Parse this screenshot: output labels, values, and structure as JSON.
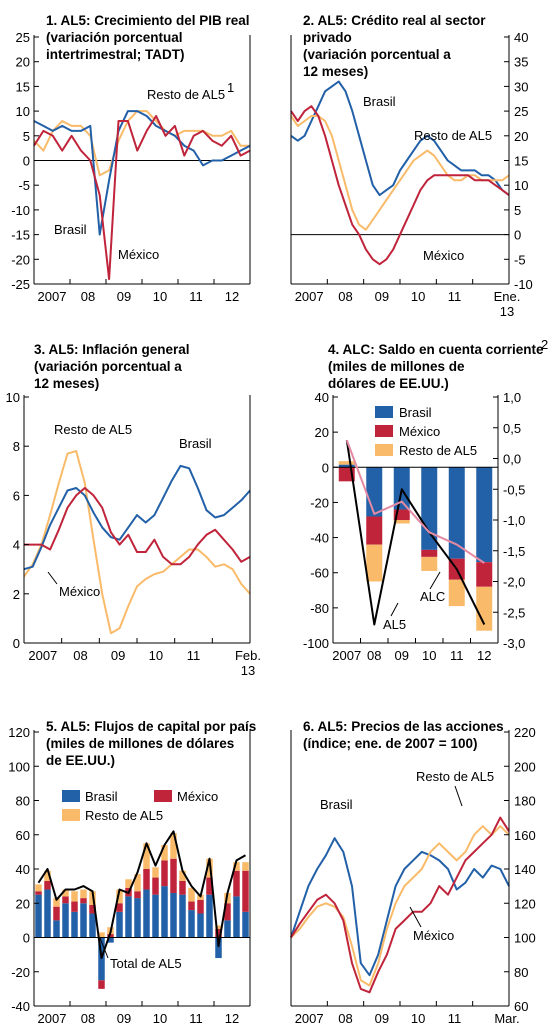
{
  "colors": {
    "brasil": "#2260a8",
    "mexico": "#c0243b",
    "resto": "#f9bb6a",
    "total": "#000000",
    "alc": "#e58aa3",
    "axis": "#000000"
  },
  "chart_data": [
    {
      "id": "p1",
      "type": "line",
      "title": [
        "1. AL5: Crecimiento del PIB real",
        "(variación porcentual",
        "intertrimestral; TADT)"
      ],
      "ylim": [
        -25,
        25
      ],
      "yticks_left": [
        "25",
        "20",
        "15",
        "10",
        "5",
        "0",
        "-5",
        "-10",
        "-15",
        "-20",
        "-25"
      ],
      "yticks_right": [],
      "xlabels": [
        "2007",
        "08",
        "09",
        "10",
        "11",
        "12"
      ],
      "x": [
        "2007Q1",
        "2007Q2",
        "2007Q3",
        "2007Q4",
        "2008Q1",
        "2008Q2",
        "2008Q3",
        "2008Q4",
        "2009Q1",
        "2009Q2",
        "2009Q3",
        "2009Q4",
        "2010Q1",
        "2010Q2",
        "2010Q3",
        "2010Q4",
        "2011Q1",
        "2011Q2",
        "2011Q3",
        "2011Q4",
        "2012Q1",
        "2012Q2",
        "2012Q3",
        "2012Q4"
      ],
      "series": [
        {
          "name": "Resto de AL5",
          "color": "resto",
          "values": [
            4,
            2,
            6,
            8,
            7,
            7,
            5,
            -3,
            -2,
            4,
            8,
            10,
            10,
            8,
            6,
            5,
            6,
            6,
            6,
            5,
            5,
            6,
            3,
            3
          ]
        },
        {
          "name": "Brasil",
          "color": "brasil",
          "values": [
            8,
            7,
            6,
            7,
            6,
            6,
            7,
            -15,
            -4,
            6,
            10,
            10,
            9,
            7,
            6,
            5,
            3,
            2,
            -1,
            0,
            0,
            1,
            2,
            3
          ]
        },
        {
          "name": "México",
          "color": "mexico",
          "values": [
            3,
            6,
            5,
            2,
            5,
            2,
            0,
            -7,
            -24,
            8,
            8,
            2,
            6,
            9,
            5,
            7,
            1,
            5,
            6,
            4,
            3,
            5,
            1,
            2
          ]
        }
      ],
      "annotations": [
        {
          "text": "Resto de AL5",
          "sup": "1"
        },
        {
          "text": "Brasil"
        },
        {
          "text": "México"
        }
      ]
    },
    {
      "id": "p2",
      "type": "line",
      "title": [
        "2. AL5: Crédito real al sector",
        "privado",
        "(variación porcentual a",
        "12 meses)"
      ],
      "ylim": [
        -10,
        40
      ],
      "yticks_left": [],
      "yticks_right": [
        "40",
        "35",
        "30",
        "25",
        "20",
        "15",
        "10",
        "5",
        "0",
        "-5",
        "-10"
      ],
      "xlabels": [
        "2007",
        "08",
        "09",
        "10",
        "11",
        "Ene.",
        "13"
      ],
      "x_start": "2007-01",
      "x_end": "2013-01",
      "series": [
        {
          "name": "Brasil",
          "color": "brasil",
          "values": [
            20,
            19,
            20,
            23,
            26,
            29,
            30,
            31,
            29,
            25,
            20,
            15,
            10,
            8,
            9,
            10,
            13,
            15,
            17,
            19,
            20,
            19,
            17,
            15,
            14,
            13,
            13,
            13,
            12,
            12,
            11,
            9,
            8
          ]
        },
        {
          "name": "Resto de AL5",
          "color": "resto",
          "values": [
            24,
            22,
            23,
            24,
            24,
            23,
            20,
            15,
            10,
            5,
            2,
            1,
            3,
            5,
            7,
            9,
            11,
            13,
            15,
            16,
            17,
            16,
            14,
            12,
            11,
            11,
            12,
            12,
            11,
            11,
            11,
            11,
            12
          ]
        },
        {
          "name": "México",
          "color": "mexico",
          "values": [
            25,
            23,
            25,
            26,
            24,
            20,
            15,
            10,
            6,
            2,
            0,
            -3,
            -5,
            -6,
            -5,
            -3,
            0,
            3,
            6,
            9,
            11,
            12,
            12,
            12,
            12,
            12,
            12,
            11,
            11,
            11,
            10,
            9,
            8
          ]
        }
      ],
      "annotations": [
        {
          "text": "Brasil"
        },
        {
          "text": "Resto de AL5"
        },
        {
          "text": "México"
        }
      ]
    },
    {
      "id": "p3",
      "type": "line",
      "title": [
        "3. AL5: Inflación general",
        "(variación porcentual a",
        "12 meses)"
      ],
      "ylim": [
        0,
        10
      ],
      "yticks_left": [
        "10",
        "8",
        "6",
        "4",
        "2",
        "0"
      ],
      "yticks_right": [],
      "xlabels": [
        "2007",
        "08",
        "09",
        "10",
        "11",
        "Feb.",
        "13"
      ],
      "x_start": "2007-01",
      "x_end": "2013-02",
      "series": [
        {
          "name": "Resto de AL5",
          "color": "resto",
          "values": [
            2.7,
            3.2,
            4.0,
            5.2,
            6.5,
            7.7,
            7.8,
            6.5,
            4.2,
            2.0,
            0.4,
            0.6,
            1.5,
            2.3,
            2.6,
            2.8,
            2.9,
            3.2,
            3.5,
            3.8,
            3.8,
            3.5,
            3.1,
            3.2,
            3.0,
            2.4,
            2.0
          ]
        },
        {
          "name": "Brasil",
          "color": "brasil",
          "values": [
            3.0,
            3.1,
            3.9,
            4.8,
            5.5,
            6.2,
            6.3,
            6.0,
            5.3,
            4.7,
            4.3,
            4.2,
            4.7,
            5.2,
            4.9,
            5.2,
            5.9,
            6.6,
            7.2,
            7.1,
            6.3,
            5.4,
            5.1,
            5.2,
            5.5,
            5.8,
            6.2
          ]
        },
        {
          "name": "México",
          "color": "mexico",
          "values": [
            4.0,
            4.0,
            4.0,
            3.8,
            4.6,
            5.5,
            6.0,
            6.3,
            6.0,
            5.5,
            4.5,
            4.0,
            4.4,
            3.7,
            3.7,
            4.2,
            3.5,
            3.2,
            3.2,
            3.5,
            4.0,
            4.4,
            4.6,
            4.2,
            3.8,
            3.3,
            3.5
          ]
        }
      ],
      "annotations": [
        {
          "text": "Resto de AL5"
        },
        {
          "text": "Brasil"
        },
        {
          "text": "México"
        }
      ]
    },
    {
      "id": "p4",
      "type": "bar",
      "title": [
        "4. ALC: Saldo en cuenta corriente",
        "(miles de millones de",
        "dólares de EE.UU.)"
      ],
      "title_sup": "2",
      "categories": [
        "2007",
        "08",
        "09",
        "10",
        "11",
        "12"
      ],
      "ylim": [
        -100,
        40
      ],
      "ylim_right": [
        -3.0,
        1.0
      ],
      "yticks_left": [
        "40",
        "20",
        "0",
        "-20",
        "-40",
        "-60",
        "-80",
        "-100"
      ],
      "yticks_right": [
        "1,0",
        "0,5",
        "0,0",
        "-0,5",
        "-1,0",
        "-1,5",
        "-2,0",
        "-2,5",
        "-3,0"
      ],
      "bars": [
        {
          "name": "Brasil",
          "color": "brasil",
          "values": [
            1.5,
            -28,
            -24,
            -47,
            -52,
            -54
          ]
        },
        {
          "name": "México",
          "color": "mexico",
          "values": [
            -8,
            -16,
            -6,
            -4,
            -12,
            -14
          ]
        },
        {
          "name": "Resto de AL5",
          "color": "resto",
          "values": [
            2,
            -21,
            -2,
            -8,
            -15,
            -25
          ]
        }
      ],
      "lines": [
        {
          "name": "AL5",
          "axis": "right",
          "color": "total",
          "values": [
            0.3,
            -2.7,
            -0.5,
            -1.2,
            -1.8,
            -2.7
          ]
        },
        {
          "name": "ALC",
          "axis": "right",
          "color": "alc",
          "values": [
            0.3,
            -0.9,
            -0.7,
            -1.2,
            -1.4,
            -1.7
          ]
        }
      ],
      "legend": [
        "Brasil",
        "México",
        "Resto de AL5"
      ],
      "annotations": [
        {
          "text": "ALC"
        },
        {
          "text": "AL5"
        }
      ]
    },
    {
      "id": "p5",
      "type": "bar",
      "title": [
        "5. AL5: Flujos de capital por país",
        "(miles de millones de dólares",
        "de EE.UU.)"
      ],
      "ylim": [
        -40,
        120
      ],
      "yticks_left": [
        "120",
        "100",
        "80",
        "60",
        "40",
        "20",
        "0",
        "-20",
        "-40"
      ],
      "yticks_right": [],
      "xlabels": [
        "2007",
        "08",
        "09",
        "10",
        "11",
        "12"
      ],
      "x_start": "2007Q1",
      "x_end": "2012Q4",
      "bars": [
        {
          "name": "Brasil",
          "color": "brasil",
          "values": [
            25,
            28,
            10,
            20,
            15,
            20,
            14,
            -25,
            -3,
            15,
            24,
            23,
            28,
            25,
            30,
            26,
            25,
            16,
            14,
            25,
            -12,
            10,
            24,
            15
          ]
        },
        {
          "name": "México",
          "color": "mexico",
          "values": [
            2,
            5,
            8,
            4,
            6,
            3,
            5,
            -5,
            2,
            5,
            5,
            4,
            12,
            10,
            15,
            20,
            8,
            5,
            8,
            10,
            5,
            10,
            15,
            24
          ]
        },
        {
          "name": "Resto de AL5",
          "color": "resto",
          "values": [
            4,
            6,
            5,
            4,
            6,
            5,
            8,
            3,
            4,
            8,
            5,
            10,
            15,
            6,
            9,
            15,
            6,
            8,
            3,
            11,
            2,
            6,
            5,
            5
          ]
        }
      ],
      "lines": [
        {
          "name": "Total de AL5",
          "color": "total",
          "values": [
            32,
            40,
            22,
            28,
            28,
            30,
            27,
            -12,
            3,
            28,
            26,
            38,
            55,
            42,
            54,
            62,
            39,
            30,
            24,
            46,
            -5,
            26,
            45,
            48
          ]
        }
      ],
      "legend": [
        "Brasil",
        "México",
        "Resto de AL5"
      ],
      "annotations": [
        {
          "text": "Total de AL5"
        }
      ]
    },
    {
      "id": "p6",
      "type": "line",
      "title": [
        "6. AL5: Precios de las acciones",
        "(índice; ene. de 2007 = 100)"
      ],
      "ylim": [
        60,
        220
      ],
      "yticks_left": [],
      "yticks_right": [
        "220",
        "200",
        "180",
        "160",
        "140",
        "120",
        "100",
        "80",
        "60"
      ],
      "xlabels": [
        "2007",
        "08",
        "09",
        "10",
        "11",
        "Mar.",
        "13"
      ],
      "x_start": "2007-01",
      "x_end": "2013-03",
      "series": [
        {
          "name": "Brasil",
          "color": "brasil",
          "values": [
            100,
            115,
            130,
            140,
            148,
            158,
            150,
            130,
            85,
            78,
            90,
            110,
            130,
            140,
            145,
            150,
            148,
            145,
            140,
            128,
            132,
            140,
            135,
            142,
            140,
            130
          ]
        },
        {
          "name": "Resto de AL5",
          "color": "resto",
          "values": [
            100,
            105,
            112,
            118,
            120,
            118,
            112,
            95,
            75,
            72,
            85,
            105,
            120,
            130,
            135,
            140,
            150,
            155,
            150,
            145,
            150,
            160,
            165,
            160,
            165,
            160
          ]
        },
        {
          "name": "México",
          "color": "mexico",
          "values": [
            100,
            108,
            115,
            122,
            125,
            120,
            110,
            85,
            70,
            68,
            80,
            90,
            105,
            110,
            115,
            115,
            120,
            130,
            125,
            135,
            145,
            150,
            155,
            160,
            170,
            162
          ]
        }
      ],
      "annotations": [
        {
          "text": "Resto de AL5"
        },
        {
          "text": "Brasil"
        },
        {
          "text": "México"
        }
      ]
    }
  ]
}
